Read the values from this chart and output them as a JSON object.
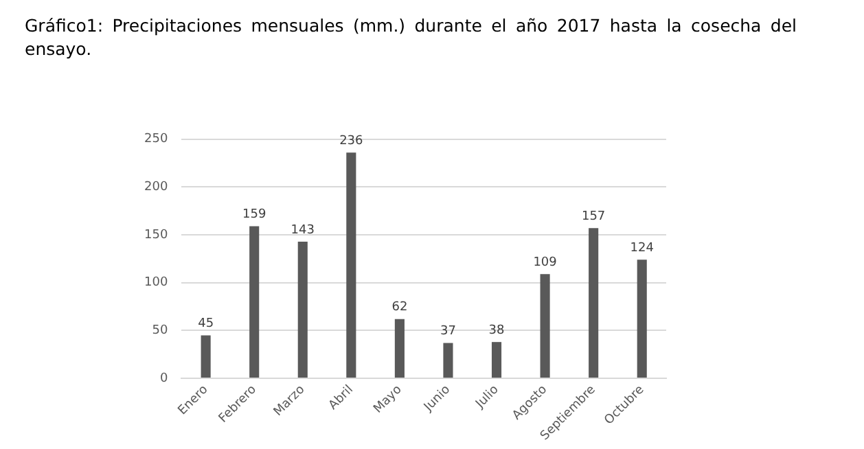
{
  "chart_data": {
    "type": "bar",
    "title": "Gráfico1: Precipitaciones mensuales (mm.) durante el año 2017 hasta la cosecha del ensayo.",
    "categories": [
      "Enero",
      "Febrero",
      "Marzo",
      "Abril",
      "Mayo",
      "Junio",
      "Julio",
      "Agosto",
      "Septiembre",
      "Octubre"
    ],
    "values": [
      45,
      159,
      143,
      236,
      62,
      37,
      38,
      109,
      157,
      124
    ],
    "color": "#595959",
    "ylim": [
      0,
      250
    ],
    "yticks": [
      0,
      50,
      100,
      150,
      200,
      250
    ],
    "grid": "y",
    "data_labels": true,
    "legend": false
  }
}
